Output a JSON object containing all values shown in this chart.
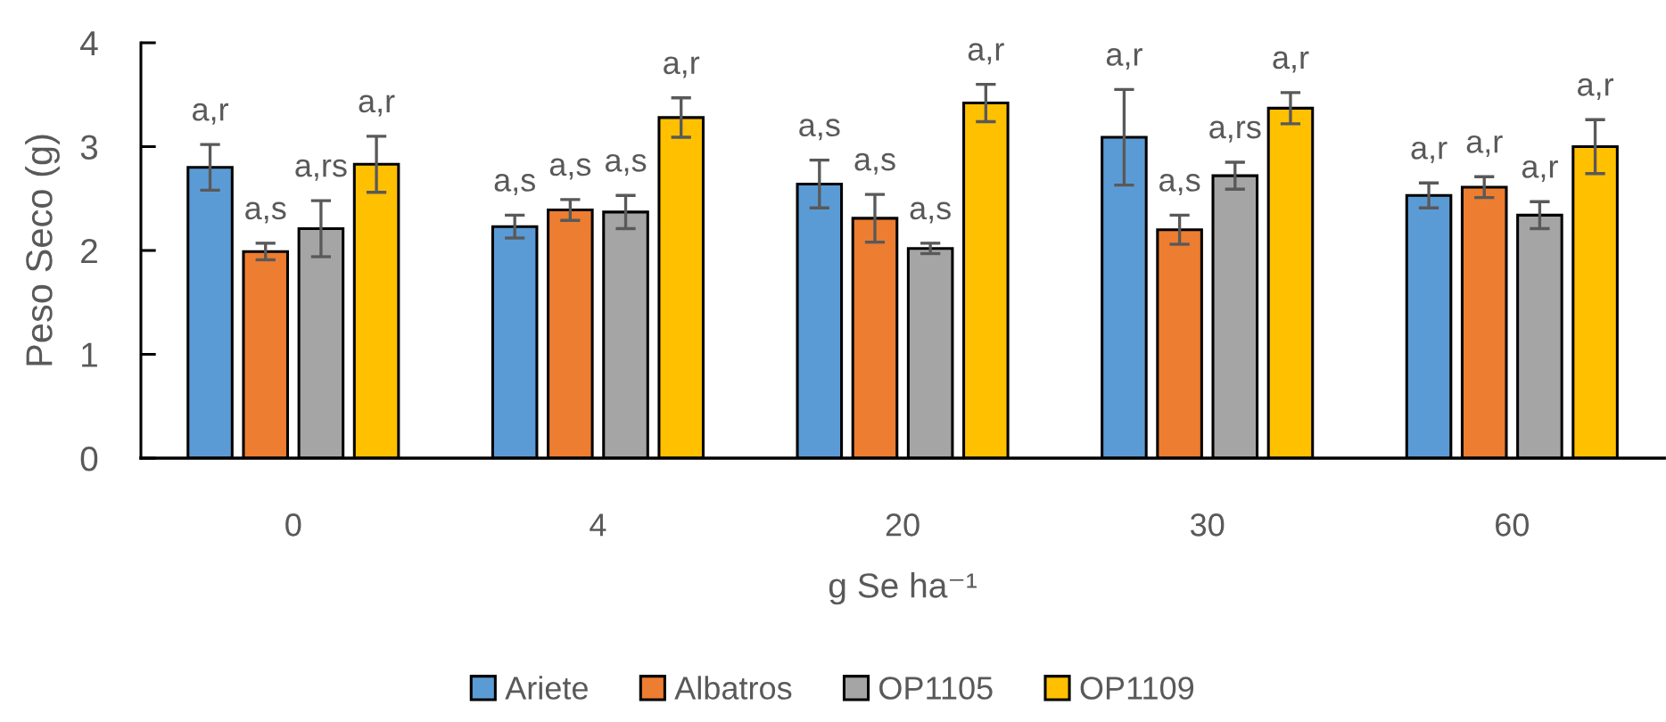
{
  "chart_data": {
    "type": "bar",
    "categories": [
      "0",
      "4",
      "20",
      "30",
      "60"
    ],
    "xlabel": "g Se ha⁻¹",
    "ylabel": "Peso Seco (g)",
    "ylim": [
      0,
      4
    ],
    "yticks": [
      0,
      1,
      2,
      3,
      4
    ],
    "legend": "bottom",
    "series": [
      {
        "name": "Ariete",
        "color": "#5b9bd5",
        "values": [
          2.8,
          2.23,
          2.64,
          3.09,
          2.53
        ],
        "errors": [
          0.22,
          0.11,
          0.23,
          0.46,
          0.12
        ],
        "value_labels": [
          "a,r",
          "a,s",
          "a,s",
          "a,r",
          "a,r"
        ]
      },
      {
        "name": "Albatros",
        "color": "#ed7d31",
        "values": [
          1.99,
          2.39,
          2.31,
          2.2,
          2.61
        ],
        "errors": [
          0.08,
          0.1,
          0.23,
          0.14,
          0.1
        ],
        "value_labels": [
          "a,s",
          "a,s",
          "a,s",
          "a,s",
          "a,r"
        ]
      },
      {
        "name": "OP1105",
        "color": "#a5a5a5",
        "values": [
          2.21,
          2.37,
          2.02,
          2.72,
          2.34
        ],
        "errors": [
          0.27,
          0.16,
          0.05,
          0.13,
          0.13
        ],
        "value_labels": [
          "a,rs",
          "a,s",
          "a,s",
          "a,rs",
          "a,r"
        ]
      },
      {
        "name": "OP1109",
        "color": "#ffc000",
        "values": [
          2.83,
          3.28,
          3.42,
          3.37,
          3.0
        ],
        "errors": [
          0.27,
          0.19,
          0.18,
          0.15,
          0.26
        ],
        "value_labels": [
          "a,r",
          "a,r",
          "a,r",
          "a,r",
          "a,r"
        ]
      }
    ]
  }
}
